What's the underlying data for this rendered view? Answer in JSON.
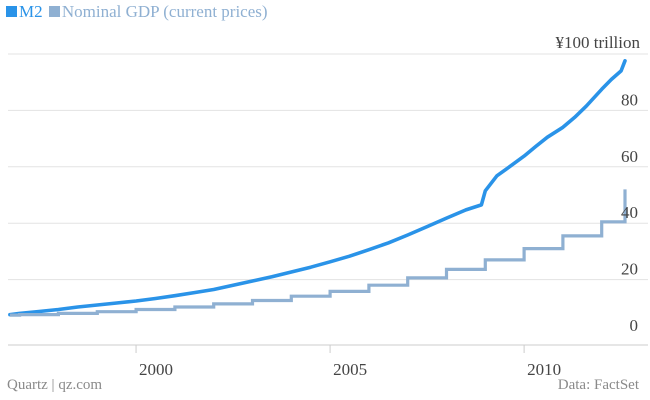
{
  "legend": {
    "m2_label": "M2",
    "gdp_label": "Nominal GDP (current prices)"
  },
  "footer": {
    "source_left": "Quartz | qz.com",
    "source_right": "Data: FactSet"
  },
  "colors": {
    "m2": "#2a93e8",
    "gdp": "#8fb0d2",
    "grid": "#e3e3e3",
    "axis": "#cccccc",
    "text": "#444444"
  },
  "chart_data": {
    "type": "line",
    "title": "",
    "units_label": "¥100 trillion",
    "xlabel": "",
    "ylabel": "",
    "xlim": [
      1996.7,
      2012.6
    ],
    "ylim": [
      0,
      100
    ],
    "yticks": [
      0,
      20,
      40,
      60,
      80
    ],
    "xticks": [
      2000,
      2005,
      2010
    ],
    "grid": true,
    "series": [
      {
        "name": "M2",
        "style": "smooth",
        "x": [
          1996.75,
          1997.0,
          1997.5,
          1998.0,
          1998.5,
          1999.0,
          1999.5,
          2000.0,
          2000.5,
          2001.0,
          2001.5,
          2002.0,
          2002.5,
          2003.0,
          2003.5,
          2004.0,
          2004.5,
          2005.0,
          2005.5,
          2006.0,
          2006.5,
          2007.0,
          2007.5,
          2008.0,
          2008.5,
          2008.9,
          2009.0,
          2009.3,
          2009.6,
          2010.0,
          2010.3,
          2010.6,
          2011.0,
          2011.3,
          2011.6,
          2012.0,
          2012.25,
          2012.5,
          2012.6
        ],
        "values": [
          7.6,
          8.0,
          8.7,
          9.4,
          10.3,
          11.0,
          11.7,
          12.4,
          13.3,
          14.3,
          15.4,
          16.5,
          18.0,
          19.5,
          21.0,
          22.7,
          24.4,
          26.3,
          28.3,
          30.6,
          33.0,
          35.8,
          38.8,
          41.8,
          44.7,
          46.5,
          51.5,
          56.8,
          59.8,
          63.8,
          67.2,
          70.5,
          74.0,
          77.5,
          81.5,
          87.5,
          91.0,
          94.0,
          97.6
        ]
      },
      {
        "name": "Nominal GDP (current prices)",
        "style": "step",
        "x": [
          1996.75,
          1997.0,
          1998.0,
          1999.0,
          2000.0,
          2001.0,
          2002.0,
          2003.0,
          2004.0,
          2005.0,
          2006.0,
          2007.0,
          2008.0,
          2009.0,
          2010.0,
          2011.0,
          2012.0,
          2012.6
        ],
        "values": [
          7.4,
          7.6,
          8.0,
          8.6,
          9.4,
          10.3,
          11.4,
          12.6,
          14.1,
          15.8,
          18.0,
          20.6,
          23.6,
          27.0,
          31.0,
          35.5,
          40.5,
          52.0
        ]
      }
    ]
  }
}
